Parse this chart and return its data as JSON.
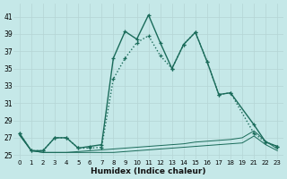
{
  "xlabel": "Humidex (Indice chaleur)",
  "bg_color": "#c5e8e8",
  "line_color": "#1a6b5a",
  "xlim": [
    -0.5,
    22.5
  ],
  "ylim": [
    24.5,
    42.5
  ],
  "xtick_labels": [
    "0",
    "1",
    "2",
    "3",
    "4",
    "5",
    "6",
    "7",
    "8",
    "9",
    "10",
    "11",
    "12",
    "13",
    "14",
    "15",
    "16",
    "17",
    "18",
    "19",
    "",
    "21",
    "22",
    "23"
  ],
  "yticks": [
    25,
    27,
    29,
    31,
    33,
    35,
    37,
    39,
    41
  ],
  "series1_x": [
    0,
    1,
    2,
    3,
    4,
    5,
    6,
    7,
    8,
    9,
    10,
    11,
    12,
    13,
    14,
    15,
    16,
    17,
    18,
    21,
    22,
    23
  ],
  "series1_xi": [
    0,
    1,
    2,
    3,
    4,
    5,
    6,
    7,
    8,
    9,
    10,
    11,
    12,
    13,
    14,
    15,
    16,
    17,
    18,
    21,
    22,
    23
  ],
  "series1_y": [
    27.5,
    25.5,
    25.5,
    27.0,
    27.0,
    25.8,
    26.0,
    26.2,
    36.2,
    39.3,
    38.4,
    41.2,
    38.0,
    35.0,
    37.8,
    39.2,
    35.8,
    32.0,
    32.2,
    28.5,
    26.5,
    26.0
  ],
  "series2_x": [
    0,
    1,
    2,
    3,
    4,
    5,
    6,
    7,
    8,
    9,
    10,
    11,
    12,
    13,
    14,
    15,
    16,
    17,
    18,
    21,
    22,
    23
  ],
  "series2_xi": [
    0,
    1,
    2,
    3,
    4,
    5,
    6,
    7,
    8,
    9,
    10,
    11,
    12,
    13,
    14,
    15,
    16,
    17,
    18,
    21,
    22,
    23
  ],
  "series2_y": [
    27.5,
    25.5,
    25.5,
    27.0,
    27.0,
    25.8,
    25.8,
    25.9,
    33.8,
    36.2,
    38.0,
    38.8,
    36.5,
    35.0,
    37.8,
    39.2,
    35.8,
    32.0,
    32.2,
    27.5,
    26.5,
    26.0
  ],
  "series3_xi": [
    0,
    1,
    2,
    3,
    4,
    5,
    6,
    7,
    8,
    9,
    10,
    11,
    12,
    13,
    14,
    15,
    16,
    17,
    18,
    19,
    21,
    22,
    23
  ],
  "series3_y": [
    27.3,
    25.5,
    25.3,
    25.3,
    25.3,
    25.4,
    25.5,
    25.6,
    25.7,
    25.8,
    25.9,
    26.0,
    26.1,
    26.2,
    26.3,
    26.5,
    26.6,
    26.7,
    26.8,
    27.0,
    27.8,
    26.6,
    25.7
  ],
  "series4_xi": [
    0,
    1,
    2,
    3,
    4,
    5,
    6,
    7,
    8,
    9,
    10,
    11,
    12,
    13,
    14,
    15,
    16,
    17,
    18,
    19,
    21,
    22,
    23
  ],
  "series4_y": [
    27.3,
    25.5,
    25.3,
    25.3,
    25.3,
    25.3,
    25.3,
    25.3,
    25.3,
    25.4,
    25.5,
    25.6,
    25.7,
    25.8,
    25.9,
    26.0,
    26.1,
    26.2,
    26.3,
    26.4,
    27.2,
    26.2,
    25.5
  ]
}
